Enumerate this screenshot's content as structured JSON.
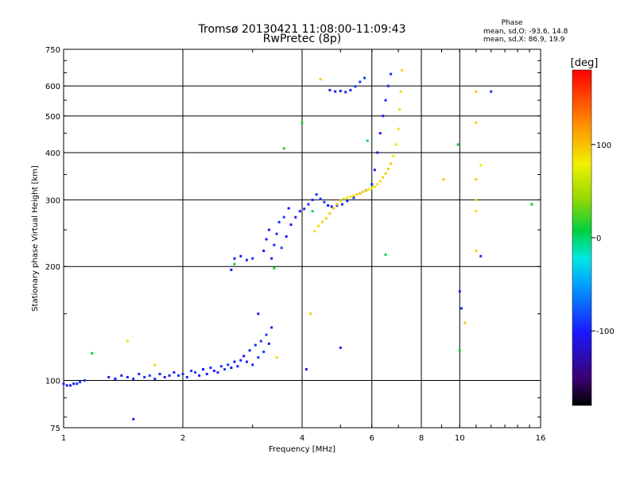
{
  "chart_data": {
    "type": "scatter",
    "title": "Tromsø 20130421 11:08:00-11:09:43",
    "subtitle": "RwPretec (8p)",
    "xlabel": "Frequency [MHz]",
    "ylabel": "Stationary phase Virtual Height [km]",
    "x_scale": "log",
    "y_scale": "log",
    "xlim": [
      1,
      16
    ],
    "ylim": [
      75,
      750
    ],
    "x_ticks": [
      1,
      2,
      4,
      6,
      8,
      10,
      16
    ],
    "x_tick_labels": [
      "1",
      "2",
      "4",
      "6",
      "8",
      "10",
      "16"
    ],
    "y_ticks": [
      75,
      100,
      200,
      300,
      400,
      500,
      600,
      750
    ],
    "y_tick_labels": [
      "75",
      "100",
      "200",
      "300",
      "400",
      "500",
      "600",
      "750"
    ],
    "grid": true,
    "phase_stats": {
      "header": "Phase",
      "o_line": "mean, sd,O: -93.6, 14.8",
      "x_line": "mean, sd,X:  86.9, 19.9"
    },
    "colorbar": {
      "label": "[deg]",
      "range": [
        -180,
        180
      ],
      "tick_values": [
        -100,
        0,
        100
      ],
      "tick_labels": [
        "-100",
        "0",
        "100"
      ]
    },
    "series": [
      {
        "name": "O-mode (blue)",
        "color_phase": -95,
        "segments": [
          {
            "x": [
              1.0,
              1.02,
              1.04,
              1.06,
              1.08,
              1.1,
              1.13
            ],
            "y": [
              98,
              97,
              97,
              98,
              98,
              99,
              100
            ]
          },
          {
            "x": [
              1.3,
              1.35,
              1.4,
              1.45,
              1.5,
              1.55,
              1.6,
              1.65,
              1.7,
              1.75,
              1.8,
              1.85,
              1.9,
              1.95,
              2.0,
              2.05,
              2.1,
              2.15,
              2.2,
              2.25,
              2.3,
              2.35,
              2.4,
              2.45,
              2.5,
              2.55,
              2.6,
              2.65,
              2.7,
              2.75,
              2.8
            ],
            "y": [
              102,
              101,
              103,
              102,
              101,
              104,
              102,
              103,
              101,
              104,
              102,
              103,
              105,
              103,
              104,
              102,
              106,
              105,
              103,
              107,
              104,
              108,
              106,
              105,
              109,
              107,
              110,
              108,
              112,
              109,
              113
            ]
          },
          {
            "x": [
              2.85,
              2.9,
              2.95,
              3.0,
              3.05,
              3.1,
              3.15,
              3.2,
              3.25,
              3.3,
              3.35
            ],
            "y": [
              116,
              112,
              120,
              110,
              124,
              115,
              127,
              119,
              132,
              125,
              138
            ]
          },
          {
            "x": [
              2.65,
              2.7,
              2.8,
              2.9,
              3.0
            ],
            "y": [
              196,
              210,
              213,
              208,
              210
            ]
          },
          {
            "x": [
              3.2,
              3.25,
              3.3,
              3.35,
              3.4,
              3.45,
              3.5,
              3.55,
              3.6,
              3.65,
              3.7
            ],
            "y": [
              220,
              236,
              250,
              210,
              228,
              244,
              262,
              224,
              270,
              240,
              285
            ]
          },
          {
            "x": [
              3.75,
              3.85,
              3.95,
              4.05,
              4.15,
              4.25,
              4.35,
              4.45,
              4.55,
              4.65,
              4.75,
              4.9,
              5.05,
              5.2,
              5.4,
              5.6,
              5.8,
              6.0,
              6.1,
              6.2,
              6.3,
              6.4,
              6.5,
              6.6,
              6.7
            ],
            "y": [
              258,
              270,
              280,
              284,
              292,
              300,
              310,
              302,
              296,
              290,
              288,
              290,
              292,
              298,
              304,
              312,
              318,
              330,
              360,
              400,
              450,
              500,
              550,
              600,
              645
            ]
          },
          {
            "x": [
              4.7,
              4.85,
              5.0,
              5.15,
              5.3,
              5.45,
              5.6,
              5.75
            ],
            "y": [
              585,
              580,
              582,
              578,
              585,
              598,
              615,
              630
            ]
          },
          {
            "x": [
              1.5,
              3.1,
              4.1,
              5.0,
              10.0,
              10.1,
              11.3,
              12.0
            ],
            "y": [
              79,
              150,
              107,
              122,
              172,
              155,
              213,
              580
            ]
          }
        ]
      },
      {
        "name": "X-mode (yellow/orange)",
        "color_phase": 90,
        "segments": [
          {
            "x": [
              4.3,
              4.4,
              4.5,
              4.6,
              4.7,
              4.8,
              4.9,
              5.0,
              5.1,
              5.2,
              5.3,
              5.4,
              5.5,
              5.6,
              5.7,
              5.8,
              5.9,
              6.0,
              6.1,
              6.2,
              6.3,
              6.4,
              6.5,
              6.6,
              6.7,
              6.8,
              6.9,
              7.0,
              7.05,
              7.1,
              7.15
            ],
            "y": [
              248,
              256,
              262,
              268,
              276,
              285,
              292,
              298,
              302,
              304,
              306,
              308,
              310,
              312,
              315,
              318,
              320,
              322,
              325,
              330,
              336,
              344,
              352,
              362,
              374,
              392,
              420,
              462,
              520,
              580,
              660
            ]
          },
          {
            "x": [
              11.0,
              11.0,
              11.0,
              11.0,
              11.0,
              11.0
            ],
            "y": [
              300,
              280,
              220,
              340,
              480,
              580
            ]
          },
          {
            "x": [
              1.45,
              1.7,
              3.45,
              4.2,
              4.45,
              9.1,
              10.3,
              11.3
            ],
            "y": [
              127,
              110,
              115,
              150,
              625,
              340,
              142,
              370
            ]
          }
        ]
      },
      {
        "name": "Other phases (green/cyan/red)",
        "color_phase": 10,
        "segments": [
          {
            "x": [
              1.18,
              2.7,
              3.4,
              3.6,
              4.0,
              4.25,
              5.85,
              6.5
            ],
            "y": [
              118,
              203,
              198,
              410,
              480,
              280,
              430,
              215
            ]
          },
          {
            "x": [
              15.2,
              10.0,
              9.9
            ],
            "y": [
              292,
              120,
              420
            ]
          }
        ]
      }
    ]
  }
}
